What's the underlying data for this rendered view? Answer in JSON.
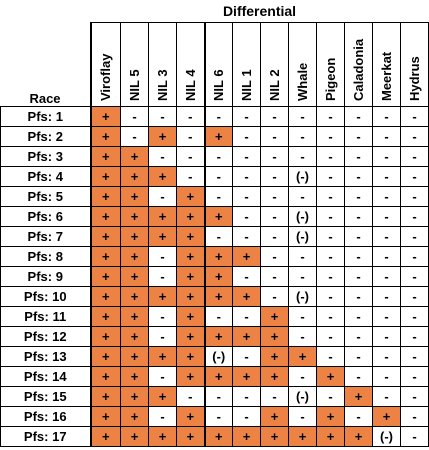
{
  "title": "Differential",
  "race_header": "Race",
  "columns": [
    "Viroflay",
    "NIL 5",
    "NIL 3",
    "NIL 4",
    "NIL 6",
    "NIL 1",
    "NIL 2",
    "Whale",
    "Pigeon",
    "Caladonia",
    "Meerkat",
    "Hydrus"
  ],
  "rows": [
    {
      "race": "Pfs: 1",
      "values": [
        "+",
        "-",
        "-",
        "-",
        "-",
        "-",
        "-",
        "-",
        "-",
        "-",
        "-",
        "-"
      ]
    },
    {
      "race": "Pfs: 2",
      "values": [
        "+",
        "-",
        "+",
        "-",
        "+",
        "-",
        "-",
        "-",
        "-",
        "-",
        "-",
        "-"
      ]
    },
    {
      "race": "Pfs: 3",
      "values": [
        "+",
        "+",
        "-",
        "-",
        "-",
        "-",
        "-",
        "-",
        "-",
        "-",
        "-",
        "-"
      ]
    },
    {
      "race": "Pfs: 4",
      "values": [
        "+",
        "+",
        "+",
        "-",
        "-",
        "-",
        "-",
        "(-)",
        "-",
        "-",
        "-",
        "-"
      ]
    },
    {
      "race": "Pfs: 5",
      "values": [
        "+",
        "+",
        "-",
        "+",
        "-",
        "-",
        "-",
        "-",
        "-",
        "-",
        "-",
        "-"
      ]
    },
    {
      "race": "Pfs: 6",
      "values": [
        "+",
        "+",
        "+",
        "+",
        "+",
        "-",
        "-",
        "(-)",
        "-",
        "-",
        "-",
        "-"
      ]
    },
    {
      "race": "Pfs: 7",
      "values": [
        "+",
        "+",
        "+",
        "+",
        "-",
        "-",
        "-",
        "(-)",
        "-",
        "-",
        "-",
        "-"
      ]
    },
    {
      "race": "Pfs: 8",
      "values": [
        "+",
        "+",
        "-",
        "+",
        "+",
        "+",
        "-",
        "-",
        "-",
        "-",
        "-",
        "-"
      ]
    },
    {
      "race": "Pfs: 9",
      "values": [
        "+",
        "+",
        "-",
        "+",
        "+",
        "-",
        "-",
        "-",
        "-",
        "-",
        "-",
        "-"
      ]
    },
    {
      "race": "Pfs: 10",
      "values": [
        "+",
        "+",
        "+",
        "+",
        "+",
        "+",
        "-",
        "(-)",
        "-",
        "-",
        "-",
        "-"
      ]
    },
    {
      "race": "Pfs: 11",
      "values": [
        "+",
        "+",
        "-",
        "+",
        "-",
        "-",
        "+",
        "-",
        "-",
        "-",
        "-",
        "-"
      ]
    },
    {
      "race": "Pfs: 12",
      "values": [
        "+",
        "+",
        "-",
        "+",
        "+",
        "+",
        "+",
        "-",
        "-",
        "-",
        "-",
        "-"
      ]
    },
    {
      "race": "Pfs: 13",
      "values": [
        "+",
        "+",
        "+",
        "+",
        "(-)",
        "-",
        "+",
        "+",
        "-",
        "-",
        "-",
        "-"
      ]
    },
    {
      "race": "Pfs: 14",
      "values": [
        "+",
        "+",
        "-",
        "+",
        "+",
        "+",
        "+",
        "-",
        "+",
        "-",
        "-",
        "-"
      ]
    },
    {
      "race": "Pfs: 15",
      "values": [
        "+",
        "+",
        "+",
        "-",
        "-",
        "-",
        "-",
        "(-)",
        "-",
        "+",
        "-",
        "-"
      ]
    },
    {
      "race": "Pfs: 16",
      "values": [
        "+",
        "+",
        "-",
        "+",
        "-",
        "-",
        "+",
        "-",
        "+",
        "-",
        "+",
        "-"
      ]
    },
    {
      "race": "Pfs: 17",
      "values": [
        "+",
        "+",
        "+",
        "+",
        "+",
        "+",
        "+",
        "+",
        "+",
        "+",
        "(-)",
        "-"
      ]
    }
  ],
  "colors": {
    "positive": "#ec8243",
    "border": "#000000"
  }
}
